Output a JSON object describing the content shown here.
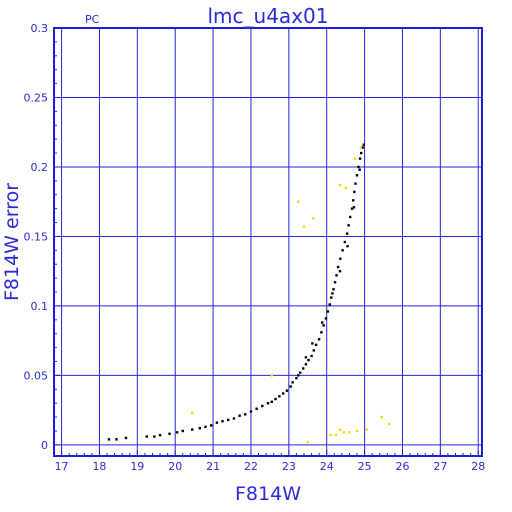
{
  "page": {
    "left_label": "PC",
    "title": "lmc_u4ax01"
  },
  "chart_data": {
    "type": "scatter",
    "title": "lmc_u4ax01",
    "xlabel": "F814W",
    "ylabel": "F814W error",
    "xlim": [
      16.8,
      28.1
    ],
    "ylim": [
      -0.008,
      0.3
    ],
    "x_ticks": [
      17,
      18,
      19,
      20,
      21,
      22,
      23,
      24,
      25,
      26,
      27,
      28
    ],
    "y_ticks": [
      0,
      0.05,
      0.1,
      0.15,
      0.2,
      0.25,
      0.3
    ],
    "x_tick_labels": [
      "17",
      "18",
      "19",
      "20",
      "21",
      "22",
      "23",
      "24",
      "25",
      "26",
      "27",
      "28"
    ],
    "y_tick_labels": [
      "0",
      "0.05",
      "0.1",
      "0.15",
      "0.2",
      "0.25",
      "0.3"
    ],
    "grid": true,
    "colors": {
      "frame": "#1d1dd7",
      "grid": "#2323df",
      "text": "#2b2bd6",
      "main_points": "#000000",
      "secondary_points": "#ffd400"
    },
    "series": [
      {
        "points": [
          [
            18.25,
            0.004
          ],
          [
            18.45,
            0.004
          ],
          [
            18.7,
            0.005
          ],
          [
            19.25,
            0.006
          ],
          [
            19.45,
            0.006
          ],
          [
            19.6,
            0.007
          ],
          [
            19.85,
            0.008
          ],
          [
            20.05,
            0.009
          ],
          [
            20.2,
            0.01
          ],
          [
            20.45,
            0.011
          ],
          [
            20.65,
            0.012
          ],
          [
            20.8,
            0.013
          ],
          [
            20.95,
            0.014
          ],
          [
            21.1,
            0.016
          ],
          [
            21.25,
            0.017
          ],
          [
            21.4,
            0.018
          ],
          [
            21.55,
            0.019
          ],
          [
            21.7,
            0.021
          ],
          [
            21.85,
            0.022
          ],
          [
            22.0,
            0.024
          ],
          [
            22.15,
            0.026
          ],
          [
            22.3,
            0.028
          ],
          [
            22.45,
            0.03
          ],
          [
            22.55,
            0.031
          ],
          [
            22.65,
            0.033
          ],
          [
            22.75,
            0.035
          ],
          [
            22.85,
            0.037
          ],
          [
            22.95,
            0.039
          ],
          [
            23.05,
            0.042
          ],
          [
            23.1,
            0.045
          ],
          [
            23.2,
            0.048
          ],
          [
            23.25,
            0.05
          ],
          [
            23.3,
            0.052
          ],
          [
            23.38,
            0.055
          ],
          [
            23.45,
            0.058
          ],
          [
            23.52,
            0.061
          ],
          [
            23.6,
            0.064
          ],
          [
            23.66,
            0.068
          ],
          [
            23.72,
            0.072
          ],
          [
            23.8,
            0.076
          ],
          [
            23.86,
            0.081
          ],
          [
            23.92,
            0.086
          ],
          [
            23.98,
            0.091
          ],
          [
            24.03,
            0.096
          ],
          [
            24.08,
            0.101
          ],
          [
            24.12,
            0.106
          ],
          [
            24.18,
            0.112
          ],
          [
            24.22,
            0.117
          ],
          [
            24.26,
            0.122
          ],
          [
            24.3,
            0.128
          ],
          [
            24.36,
            0.134
          ],
          [
            24.42,
            0.14
          ],
          [
            24.48,
            0.146
          ],
          [
            24.54,
            0.152
          ],
          [
            24.58,
            0.158
          ],
          [
            24.62,
            0.164
          ],
          [
            24.67,
            0.17
          ],
          [
            24.7,
            0.176
          ],
          [
            24.73,
            0.182
          ],
          [
            24.76,
            0.188
          ],
          [
            24.8,
            0.194
          ],
          [
            24.84,
            0.2
          ],
          [
            24.88,
            0.206
          ],
          [
            24.91,
            0.21
          ],
          [
            24.95,
            0.214
          ],
          [
            24.98,
            0.216
          ],
          [
            23.45,
            0.063
          ],
          [
            23.62,
            0.073
          ],
          [
            23.88,
            0.088
          ],
          [
            24.15,
            0.109
          ],
          [
            24.35,
            0.125
          ],
          [
            24.55,
            0.143
          ],
          [
            24.72,
            0.171
          ],
          [
            24.87,
            0.198
          ]
        ]
      },
      {
        "points": [
          [
            20.45,
            0.023
          ],
          [
            22.55,
            0.05
          ],
          [
            23.25,
            0.175
          ],
          [
            23.4,
            0.157
          ],
          [
            23.65,
            0.163
          ],
          [
            23.5,
            0.002
          ],
          [
            24.1,
            0.007
          ],
          [
            24.25,
            0.007
          ],
          [
            24.35,
            0.011
          ],
          [
            24.45,
            0.009
          ],
          [
            24.6,
            0.009
          ],
          [
            24.8,
            0.01
          ],
          [
            25.05,
            0.011
          ],
          [
            25.45,
            0.02
          ],
          [
            25.65,
            0.015
          ],
          [
            24.35,
            0.187
          ],
          [
            24.5,
            0.185
          ],
          [
            24.9,
            0.214
          ],
          [
            24.75,
            0.206
          ]
        ]
      }
    ]
  }
}
